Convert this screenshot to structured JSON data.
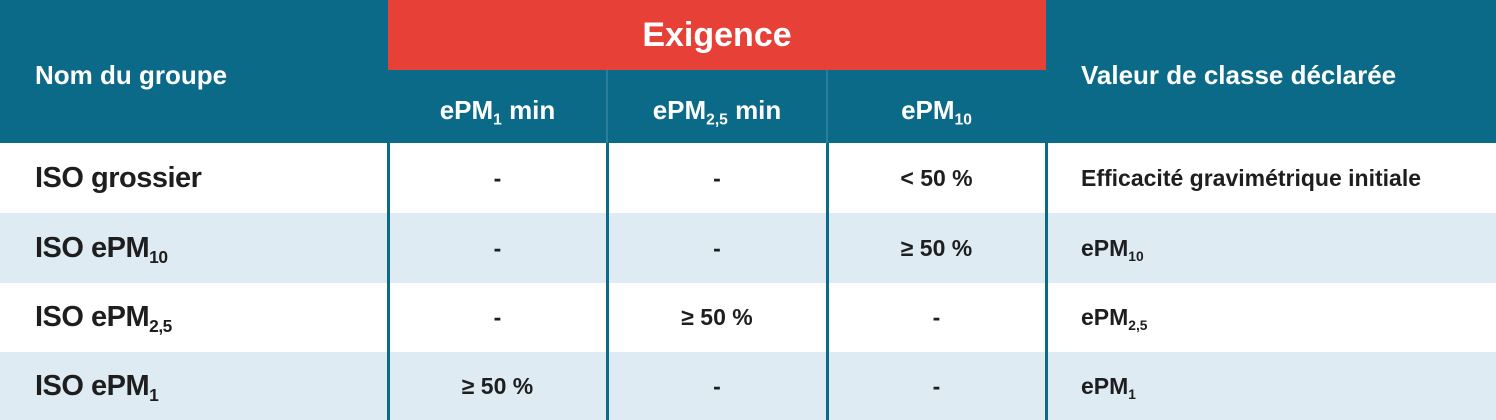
{
  "table": {
    "group_header": "Exigence",
    "headers": [
      "Nom du groupe",
      {
        "text": "ePM",
        "sub": "1",
        "after": " min"
      },
      {
        "text": "ePM",
        "sub": "2,5",
        "after": " min"
      },
      {
        "text": "ePM",
        "sub": "10"
      },
      "Valeur de classe déclarée"
    ],
    "rows": [
      [
        "ISO grossier",
        "-",
        "-",
        "< 50 %",
        "Efficacité gravimétrique initiale"
      ],
      [
        {
          "text": "ISO ePM",
          "sub": "10"
        },
        "-",
        "-",
        "≥ 50 %",
        {
          "text": "ePM",
          "sub": "10"
        }
      ],
      [
        {
          "text": "ISO ePM",
          "sub": "2,5"
        },
        "-",
        "≥ 50 %",
        "-",
        {
          "text": "ePM",
          "sub": "2,5"
        }
      ],
      [
        {
          "text": "ISO ePM",
          "sub": "1"
        },
        "≥ 50 %",
        "-",
        "-",
        {
          "text": "ePM",
          "sub": "1"
        }
      ]
    ]
  }
}
